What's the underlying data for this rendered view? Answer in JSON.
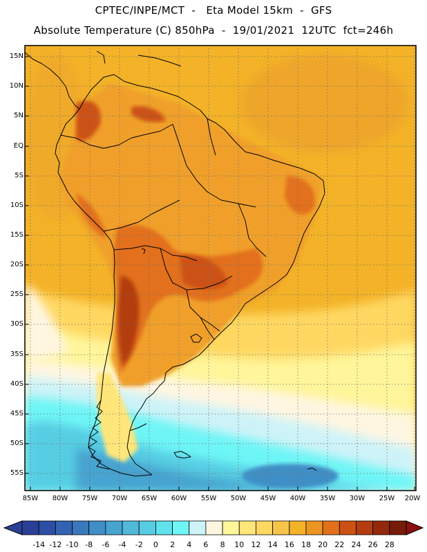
{
  "header": {
    "line1": "CPTEC/INPE/MCT  -   Eta Model 15km  -  GFS",
    "line2": "Absolute Temperature (C) 850hPa  -  19/01/2021  12UTC  fct=246h"
  },
  "axes": {
    "lat_labels": [
      "15N",
      "10N",
      "5N",
      "EQ",
      "5S",
      "10S",
      "15S",
      "20S",
      "25S",
      "30S",
      "35S",
      "40S",
      "45S",
      "50S",
      "55S"
    ],
    "lon_labels": [
      "85W",
      "80W",
      "75W",
      "70W",
      "65W",
      "60W",
      "55W",
      "50W",
      "45W",
      "40W",
      "35W",
      "30W",
      "25W",
      "20W"
    ]
  },
  "colorbar": {
    "levels": [
      "-14",
      "-12",
      "-10",
      "-8",
      "-6",
      "-4",
      "-2",
      "0",
      "2",
      "4",
      "6",
      "8",
      "10",
      "12",
      "14",
      "16",
      "18",
      "20",
      "22",
      "24",
      "26",
      "28"
    ],
    "colors": [
      "#2a3f96",
      "#2c4fa5",
      "#3262b2",
      "#3a78bd",
      "#3f8ec6",
      "#47a3cf",
      "#52b9d9",
      "#57cde3",
      "#5ee2ec",
      "#6ef5f6",
      "#cdf3f8",
      "#fff6e2",
      "#fff59a",
      "#ffe67a",
      "#ffd862",
      "#f7c44a",
      "#f3b227",
      "#ea9620",
      "#e2701a",
      "#cc5114",
      "#b33c10",
      "#93280c",
      "#741b0a"
    ]
  },
  "palette": {
    "ocean_warm": "#f3b227",
    "land_warm": "#f0a82a",
    "hot": "#e2701a",
    "very_hot": "#b33c10",
    "coast": "#000000",
    "grid": "#6e6e6e"
  }
}
